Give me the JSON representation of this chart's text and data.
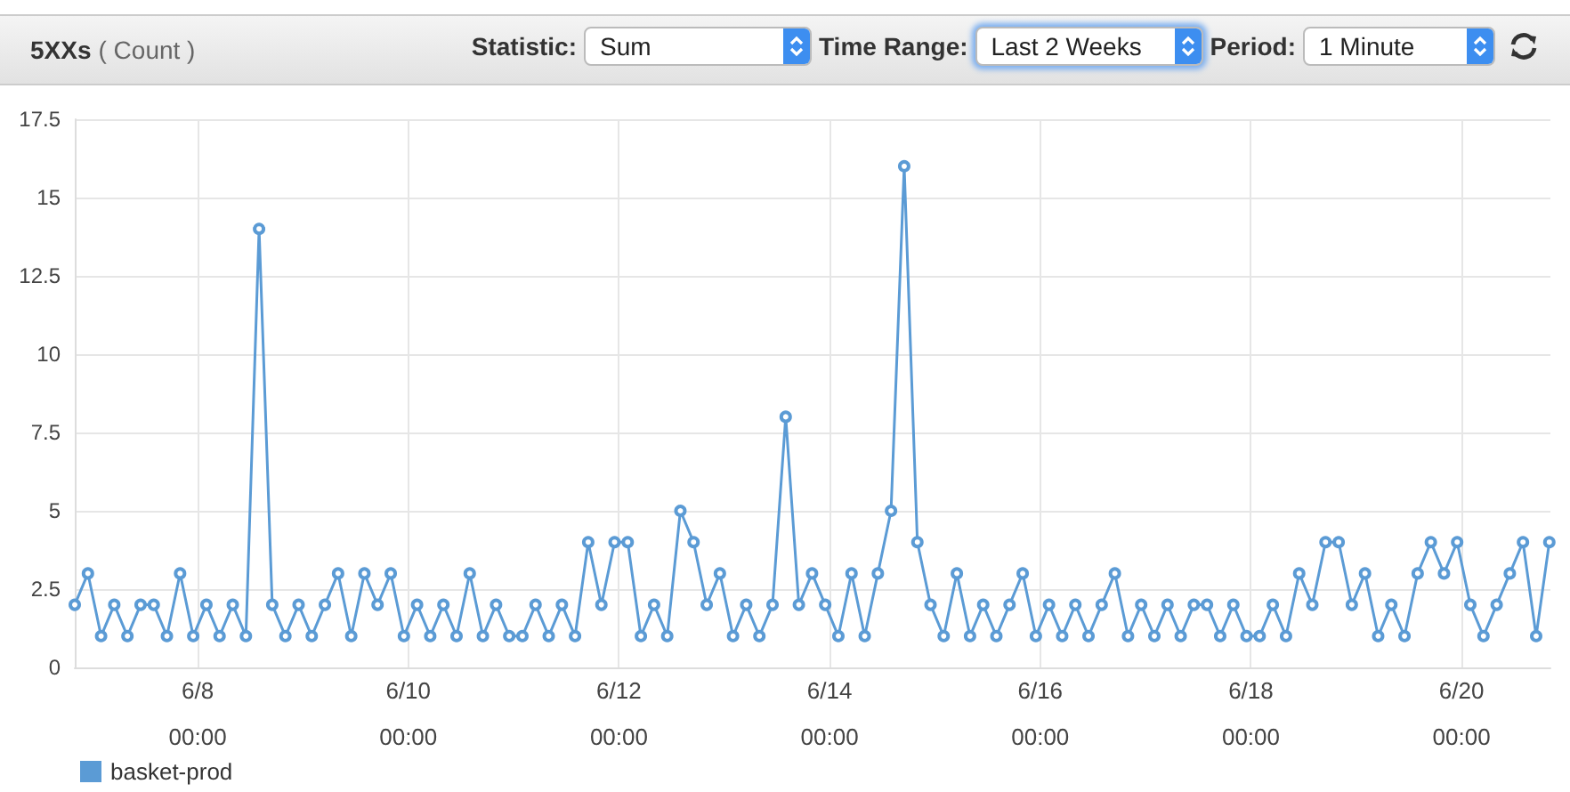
{
  "chart_data": {
    "type": "line",
    "title": "5XXs",
    "subtitle": "( Count )",
    "annotations": [
      "Statistic:",
      "Sum",
      "Time Range:",
      "Last 2 Weeks",
      "Period:",
      "1 Minute"
    ],
    "x": [
      "--06-06T20:00",
      "--06-06T23:00",
      "--06-07T02:00",
      "--06-07T05:00",
      "--06-07T08:00",
      "--06-07T11:00",
      "--06-07T14:00",
      "--06-07T17:00",
      "--06-07T20:00",
      "--06-07T23:00",
      "--06-08T02:00",
      "--06-08T05:00",
      "--06-08T08:00",
      "--06-08T11:00",
      "--06-08T14:00",
      "--06-08T17:00",
      "--06-08T20:00",
      "--06-08T23:00",
      "--06-09T02:00",
      "--06-09T05:00",
      "--06-09T08:00",
      "--06-09T11:00",
      "--06-09T14:00",
      "--06-09T17:00",
      "--06-09T20:00",
      "--06-09T23:00",
      "--06-10T02:00",
      "--06-10T05:00",
      "--06-10T08:00",
      "--06-10T11:00",
      "--06-10T14:00",
      "--06-10T17:00",
      "--06-10T20:00",
      "--06-10T23:00",
      "--06-11T02:00",
      "--06-11T05:00",
      "--06-11T08:00",
      "--06-11T11:00",
      "--06-11T14:00",
      "--06-11T17:00",
      "--06-11T20:00",
      "--06-11T23:00",
      "--06-12T02:00",
      "--06-12T05:00",
      "--06-12T08:00",
      "--06-12T11:00",
      "--06-12T14:00",
      "--06-12T17:00",
      "--06-12T20:00",
      "--06-12T23:00",
      "--06-13T02:00",
      "--06-13T05:00",
      "--06-13T08:00",
      "--06-13T11:00",
      "--06-13T14:00",
      "--06-13T17:00",
      "--06-13T20:00",
      "--06-13T23:00",
      "--06-14T02:00",
      "--06-14T05:00",
      "--06-14T08:00",
      "--06-14T11:00",
      "--06-14T14:00",
      "--06-14T17:00",
      "--06-14T20:00",
      "--06-14T23:00",
      "--06-15T02:00",
      "--06-15T05:00",
      "--06-15T08:00",
      "--06-15T11:00",
      "--06-15T14:00",
      "--06-15T17:00",
      "--06-15T20:00",
      "--06-15T23:00",
      "--06-16T02:00",
      "--06-16T05:00",
      "--06-16T08:00",
      "--06-16T11:00",
      "--06-16T14:00",
      "--06-16T17:00",
      "--06-16T20:00",
      "--06-16T23:00",
      "--06-17T02:00",
      "--06-17T05:00",
      "--06-17T08:00",
      "--06-17T11:00",
      "--06-17T14:00",
      "--06-17T17:00",
      "--06-17T20:00",
      "--06-17T23:00",
      "--06-18T02:00",
      "--06-18T05:00",
      "--06-18T08:00",
      "--06-18T11:00",
      "--06-18T14:00",
      "--06-18T17:00",
      "--06-18T20:00",
      "--06-18T23:00",
      "--06-19T02:00",
      "--06-19T05:00",
      "--06-19T08:00",
      "--06-19T11:00",
      "--06-19T14:00",
      "--06-19T17:00",
      "--06-19T20:00",
      "--06-19T23:00",
      "--06-20T02:00",
      "--06-20T05:00",
      "--06-20T08:00",
      "--06-20T11:00",
      "--06-20T14:00",
      "--06-20T17:00",
      "--06-20T20:00"
    ],
    "series": [
      {
        "name": "basket-prod",
        "color": "#5b9bd5",
        "values": [
          2,
          3,
          1,
          2,
          1,
          2,
          2,
          1,
          3,
          1,
          2,
          1,
          2,
          1,
          14,
          2,
          1,
          2,
          1,
          2,
          3,
          1,
          3,
          2,
          3,
          1,
          2,
          1,
          2,
          1,
          3,
          1,
          2,
          1,
          1,
          2,
          1,
          2,
          1,
          4,
          2,
          4,
          4,
          1,
          2,
          1,
          5,
          4,
          2,
          3,
          1,
          2,
          1,
          2,
          8,
          2,
          3,
          2,
          1,
          3,
          1,
          3,
          5,
          16,
          4,
          2,
          1,
          3,
          1,
          2,
          1,
          2,
          3,
          1,
          2,
          1,
          2,
          1,
          2,
          3,
          1,
          2,
          1,
          2,
          1,
          2,
          2,
          1,
          2,
          1,
          1,
          2,
          1,
          3,
          2,
          4,
          4,
          2,
          3,
          1,
          2,
          1,
          3,
          4,
          3,
          4,
          2,
          1,
          2,
          3,
          4,
          1,
          4
        ]
      }
    ],
    "xlim": [
      "--06-06T20:00",
      "--06-20T20:15"
    ],
    "xticks": [
      {
        "value": "--06-08T00:00",
        "label": "6/8\n00:00"
      },
      {
        "value": "--06-10T00:00",
        "label": "6/10\n00:00"
      },
      {
        "value": "--06-12T00:00",
        "label": "6/12\n00:00"
      },
      {
        "value": "--06-14T00:00",
        "label": "6/14\n00:00"
      },
      {
        "value": "--06-16T00:00",
        "label": "6/16\n00:00"
      },
      {
        "value": "--06-18T00:00",
        "label": "6/18\n00:00"
      },
      {
        "value": "--06-20T00:00",
        "label": "6/20\n00:00"
      }
    ],
    "ylim": [
      0,
      17.5
    ],
    "yticks": [
      0,
      2.5,
      5,
      7.5,
      10,
      12.5,
      15,
      17.5
    ],
    "grid": true,
    "legend": "bottom left",
    "marker": "circle",
    "line_style": "solid"
  }
}
